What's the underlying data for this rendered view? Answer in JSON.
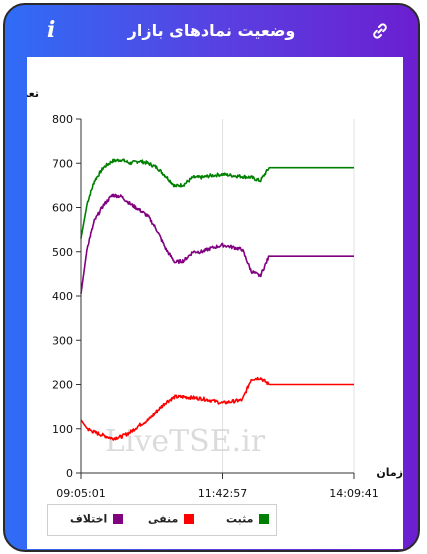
{
  "header": {
    "title": "وضعیت نمادهای بازار",
    "info_icon": "i"
  },
  "watermark": "LiveTSE.ir",
  "colors": {
    "positive": "#008000",
    "negative": "#ff0000",
    "difference": "#800080"
  },
  "chart_data": {
    "type": "line",
    "title": "",
    "ylabel": "تعداد نماد",
    "xlabel": "زمان",
    "ylim": [
      0,
      800
    ],
    "yticks": [
      0,
      100,
      200,
      300,
      400,
      500,
      600,
      700,
      800
    ],
    "xlim": [
      "09:05:01",
      "14:09:41"
    ],
    "xticks": [
      "09:05:01",
      "11:42:57",
      "14:09:41"
    ],
    "legend_position": "bottom-left",
    "series": [
      {
        "name": "مثبت",
        "color": "#008000",
        "points": [
          [
            "09:05:01",
            530
          ],
          [
            "09:12:00",
            610
          ],
          [
            "09:20:00",
            660
          ],
          [
            "09:30:00",
            690
          ],
          [
            "09:40:00",
            705
          ],
          [
            "09:50:00",
            708
          ],
          [
            "10:00:00",
            700
          ],
          [
            "10:10:00",
            705
          ],
          [
            "10:20:00",
            700
          ],
          [
            "10:30:00",
            690
          ],
          [
            "10:40:00",
            670
          ],
          [
            "10:50:00",
            648
          ],
          [
            "11:00:00",
            652
          ],
          [
            "11:10:00",
            668
          ],
          [
            "11:20:00",
            668
          ],
          [
            "11:30:00",
            672
          ],
          [
            "11:42:57",
            675
          ],
          [
            "11:55:00",
            672
          ],
          [
            "12:05:00",
            670
          ],
          [
            "12:15:00",
            668
          ],
          [
            "12:25:00",
            660
          ],
          [
            "12:35:00",
            690
          ],
          [
            "14:09:41",
            690
          ]
        ]
      },
      {
        "name": "منفی",
        "color": "#ff0000",
        "points": [
          [
            "09:05:01",
            120
          ],
          [
            "09:12:00",
            100
          ],
          [
            "09:20:00",
            92
          ],
          [
            "09:30:00",
            85
          ],
          [
            "09:40:00",
            78
          ],
          [
            "09:50:00",
            82
          ],
          [
            "10:00:00",
            92
          ],
          [
            "10:10:00",
            108
          ],
          [
            "10:20:00",
            120
          ],
          [
            "10:30:00",
            140
          ],
          [
            "10:40:00",
            160
          ],
          [
            "10:50:00",
            172
          ],
          [
            "11:00:00",
            172
          ],
          [
            "11:10:00",
            170
          ],
          [
            "11:20:00",
            168
          ],
          [
            "11:30:00",
            164
          ],
          [
            "11:42:57",
            158
          ],
          [
            "11:55:00",
            162
          ],
          [
            "12:05:00",
            165
          ],
          [
            "12:15:00",
            212
          ],
          [
            "12:25:00",
            215
          ],
          [
            "12:35:00",
            200
          ],
          [
            "14:09:41",
            200
          ]
        ]
      },
      {
        "name": "اختلاف",
        "color": "#800080",
        "points": [
          [
            "09:05:01",
            405
          ],
          [
            "09:12:00",
            510
          ],
          [
            "09:20:00",
            570
          ],
          [
            "09:30:00",
            605
          ],
          [
            "09:40:00",
            628
          ],
          [
            "09:50:00",
            625
          ],
          [
            "10:00:00",
            608
          ],
          [
            "10:10:00",
            595
          ],
          [
            "10:20:00",
            580
          ],
          [
            "10:30:00",
            548
          ],
          [
            "10:40:00",
            505
          ],
          [
            "10:50:00",
            476
          ],
          [
            "11:00:00",
            480
          ],
          [
            "11:10:00",
            500
          ],
          [
            "11:20:00",
            500
          ],
          [
            "11:30:00",
            508
          ],
          [
            "11:42:57",
            515
          ],
          [
            "11:55:00",
            510
          ],
          [
            "12:05:00",
            505
          ],
          [
            "12:15:00",
            456
          ],
          [
            "12:25:00",
            445
          ],
          [
            "12:35:00",
            490
          ],
          [
            "14:09:41",
            490
          ]
        ]
      }
    ]
  }
}
